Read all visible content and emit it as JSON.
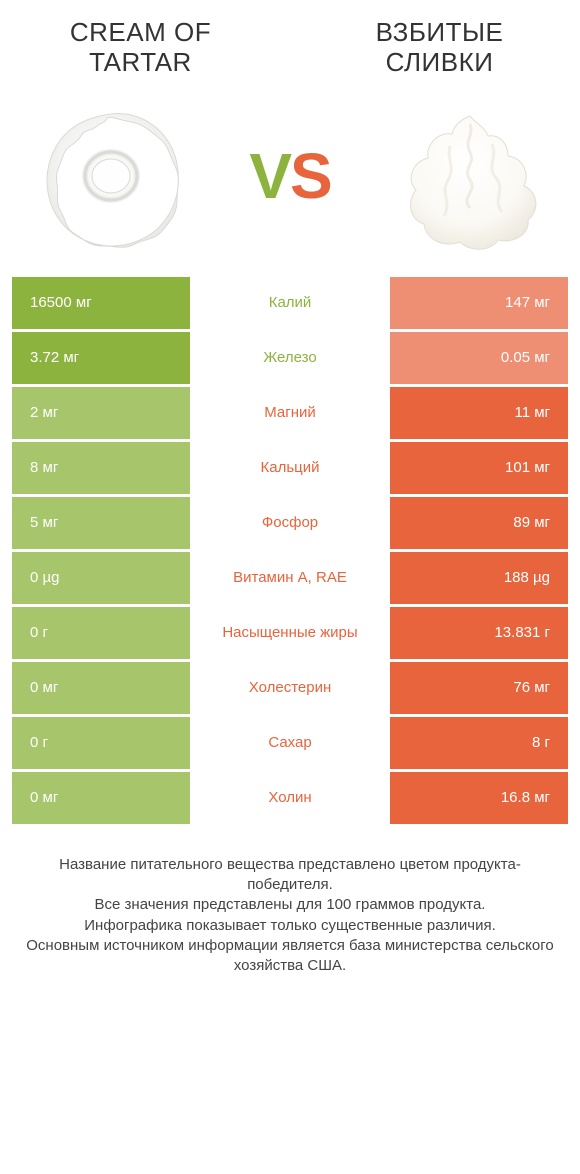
{
  "colors": {
    "left": "#8db33f",
    "right": "#e8643c",
    "left_dim": "#a7c56b",
    "right_dim": "#ee8f73",
    "text_label_left": "#8db33f",
    "text_label_right": "#e8643c",
    "vs_v": "#8db33f",
    "vs_s": "#e8643c"
  },
  "header": {
    "left_title": "CREAM OF TARTAR",
    "right_title": "ВЗБИТЫЕ СЛИВКИ",
    "vs_v": "V",
    "vs_s": "S"
  },
  "rows": [
    {
      "left": "16500 мг",
      "label": "Калий",
      "right": "147 мг",
      "winner": "left"
    },
    {
      "left": "3.72 мг",
      "label": "Железо",
      "right": "0.05 мг",
      "winner": "left"
    },
    {
      "left": "2 мг",
      "label": "Магний",
      "right": "11 мг",
      "winner": "right"
    },
    {
      "left": "8 мг",
      "label": "Кальций",
      "right": "101 мг",
      "winner": "right"
    },
    {
      "left": "5 мг",
      "label": "Фосфор",
      "right": "89 мг",
      "winner": "right"
    },
    {
      "left": "0 µg",
      "label": "Витамин A, RAE",
      "right": "188 µg",
      "winner": "right"
    },
    {
      "left": "0 г",
      "label": "Насыщенные жиры",
      "right": "13.831 г",
      "winner": "right"
    },
    {
      "left": "0 мг",
      "label": "Холестерин",
      "right": "76 мг",
      "winner": "right"
    },
    {
      "left": "0 г",
      "label": "Сахар",
      "right": "8 г",
      "winner": "right"
    },
    {
      "left": "0 мг",
      "label": "Холин",
      "right": "16.8 мг",
      "winner": "right"
    }
  ],
  "footer": "Название питательного вещества представлено цветом продукта-победителя.\nВсе значения представлены для 100 граммов продукта.\nИнфографика показывает только существенные различия.\nОсновным источником информации является база министерства сельского хозяйства США."
}
